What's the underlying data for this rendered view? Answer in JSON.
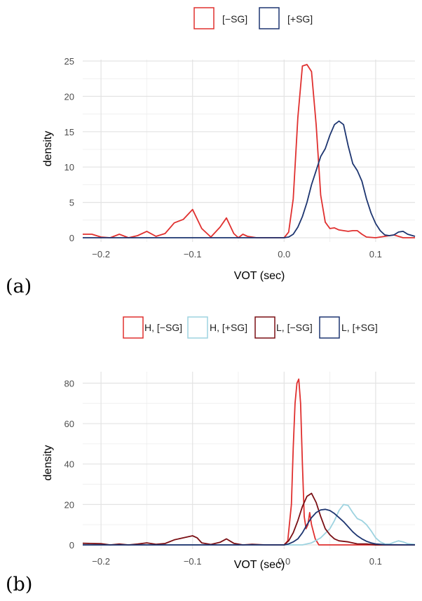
{
  "chart_data": [
    {
      "type": "line",
      "panel_label": "(a)",
      "xlabel": "VOT (sec)",
      "ylabel": "density",
      "xlim": [
        -0.22,
        0.143
      ],
      "ylim": [
        0,
        25
      ],
      "xticks": [
        -0.2,
        -0.1,
        0.0,
        0.1
      ],
      "xtick_labels": [
        "−0.2",
        "−0.1",
        "0.0",
        "0.1"
      ],
      "yticks": [
        0,
        5,
        10,
        15,
        20,
        25
      ],
      "ytick_labels": [
        "0",
        "5",
        "10",
        "15",
        "20",
        "25"
      ],
      "grid": true,
      "legend_position": "top",
      "series": [
        {
          "name": "[−SG]",
          "color": "#e0302f",
          "x": [
            -0.22,
            -0.21,
            -0.2,
            -0.19,
            -0.18,
            -0.17,
            -0.16,
            -0.15,
            -0.14,
            -0.13,
            -0.12,
            -0.11,
            -0.1,
            -0.09,
            -0.08,
            -0.07,
            -0.063,
            -0.055,
            -0.05,
            -0.045,
            -0.04,
            -0.03,
            -0.02,
            -0.01,
            -0.005,
            0.0,
            0.005,
            0.01,
            0.015,
            0.02,
            0.025,
            0.03,
            0.035,
            0.04,
            0.045,
            0.05,
            0.055,
            0.06,
            0.065,
            0.07,
            0.075,
            0.08,
            0.085,
            0.09,
            0.1,
            0.11,
            0.12,
            0.13,
            0.143
          ],
          "values": [
            0.5,
            0.5,
            0.1,
            0.0,
            0.5,
            0.0,
            0.3,
            0.9,
            0.2,
            0.6,
            2.1,
            2.6,
            4.0,
            1.3,
            0.1,
            1.5,
            2.8,
            0.6,
            0.0,
            0.5,
            0.2,
            0.0,
            0.0,
            0.0,
            0.0,
            0.0,
            0.8,
            5.5,
            17.0,
            24.3,
            24.5,
            23.5,
            16.0,
            6.0,
            2.2,
            1.3,
            1.4,
            1.1,
            1.0,
            0.9,
            1.0,
            1.0,
            0.5,
            0.1,
            0.0,
            0.2,
            0.4,
            0.0,
            0.0
          ]
        },
        {
          "name": "[+SG]",
          "color": "#1d3570",
          "x": [
            -0.22,
            -0.1,
            0.0,
            0.005,
            0.01,
            0.015,
            0.02,
            0.025,
            0.03,
            0.035,
            0.04,
            0.045,
            0.05,
            0.055,
            0.06,
            0.065,
            0.07,
            0.075,
            0.08,
            0.085,
            0.09,
            0.095,
            0.1,
            0.105,
            0.11,
            0.115,
            0.12,
            0.125,
            0.13,
            0.135,
            0.143
          ],
          "values": [
            0.0,
            0.0,
            0.0,
            0.1,
            0.5,
            1.5,
            3.0,
            5.0,
            7.5,
            9.5,
            11.5,
            12.6,
            14.5,
            16.0,
            16.5,
            16.0,
            13.0,
            10.5,
            9.5,
            8.0,
            5.5,
            3.5,
            2.0,
            1.0,
            0.4,
            0.3,
            0.4,
            0.8,
            0.9,
            0.5,
            0.2
          ]
        }
      ]
    },
    {
      "type": "line",
      "panel_label": "(b)",
      "xlabel": "VOT (sec)",
      "ylabel": "density",
      "xlim": [
        -0.22,
        0.143
      ],
      "ylim": [
        0,
        85
      ],
      "xticks": [
        -0.2,
        -0.1,
        0.0,
        0.1
      ],
      "xtick_labels": [
        "−0.2",
        "−0.1",
        "0.0",
        "0.1"
      ],
      "yticks": [
        0,
        20,
        40,
        60,
        80
      ],
      "ytick_labels": [
        "0",
        "20",
        "40",
        "60",
        "80"
      ],
      "grid": true,
      "legend_position": "top",
      "series": [
        {
          "name": "H, [−SG]",
          "color": "#e0302f",
          "x": [
            -0.22,
            0.0,
            0.004,
            0.008,
            0.01,
            0.012,
            0.014,
            0.016,
            0.018,
            0.02,
            0.022,
            0.024,
            0.026,
            0.028,
            0.03,
            0.034,
            0.038,
            0.143
          ],
          "values": [
            0.0,
            0.0,
            2.0,
            20.0,
            48.0,
            70.0,
            80.0,
            82.0,
            70.0,
            40.0,
            14.0,
            8.0,
            10.0,
            16.0,
            10.0,
            3.0,
            0.0,
            0.0
          ]
        },
        {
          "name": "H, [+SG]",
          "color": "#9dd3e0",
          "x": [
            -0.22,
            0.02,
            0.03,
            0.04,
            0.05,
            0.055,
            0.06,
            0.065,
            0.07,
            0.075,
            0.08,
            0.085,
            0.09,
            0.095,
            0.1,
            0.105,
            0.11,
            0.115,
            0.12,
            0.125,
            0.13,
            0.135,
            0.143
          ],
          "values": [
            0.0,
            0.0,
            1.0,
            3.5,
            8.0,
            12.0,
            17.0,
            20.0,
            19.5,
            16.0,
            13.0,
            12.0,
            10.0,
            7.0,
            3.5,
            1.5,
            0.5,
            0.4,
            1.3,
            2.0,
            1.5,
            0.6,
            0.2
          ]
        },
        {
          "name": "L, [−SG]",
          "color": "#7a0f14",
          "x": [
            -0.22,
            -0.2,
            -0.19,
            -0.18,
            -0.17,
            -0.16,
            -0.15,
            -0.14,
            -0.13,
            -0.12,
            -0.11,
            -0.1,
            -0.095,
            -0.09,
            -0.08,
            -0.07,
            -0.063,
            -0.055,
            -0.045,
            -0.035,
            -0.02,
            -0.01,
            0.0,
            0.005,
            0.01,
            0.015,
            0.02,
            0.025,
            0.03,
            0.035,
            0.04,
            0.045,
            0.05,
            0.055,
            0.06,
            0.07,
            0.08,
            0.09,
            0.1,
            0.11,
            0.143
          ],
          "values": [
            0.8,
            0.6,
            0.0,
            0.4,
            0.0,
            0.4,
            1.0,
            0.3,
            0.7,
            2.5,
            3.5,
            4.5,
            3.5,
            1.0,
            0.2,
            1.3,
            3.0,
            0.8,
            0.0,
            0.3,
            0.0,
            0.0,
            0.0,
            2.0,
            6.0,
            12.0,
            19.0,
            24.0,
            25.5,
            21.0,
            14.0,
            8.0,
            5.0,
            3.0,
            2.0,
            1.5,
            0.5,
            0.5,
            0.0,
            0.0,
            0.0
          ]
        },
        {
          "name": "L, [+SG]",
          "color": "#1d3570",
          "x": [
            -0.22,
            0.0,
            0.005,
            0.01,
            0.015,
            0.02,
            0.025,
            0.03,
            0.035,
            0.04,
            0.045,
            0.05,
            0.055,
            0.06,
            0.065,
            0.07,
            0.075,
            0.08,
            0.085,
            0.09,
            0.095,
            0.1,
            0.11,
            0.143
          ],
          "values": [
            0.0,
            0.0,
            0.5,
            1.5,
            3.0,
            6.0,
            10.0,
            13.5,
            16.0,
            17.3,
            17.6,
            17.0,
            15.5,
            13.5,
            11.5,
            9.0,
            6.5,
            4.5,
            3.0,
            1.8,
            1.0,
            0.5,
            0.1,
            0.0
          ]
        }
      ]
    }
  ],
  "legends": [
    {
      "items": [
        {
          "label": "[−SG]",
          "color": "#e0302f"
        },
        {
          "label": "[+SG]",
          "color": "#1d3570"
        }
      ]
    },
    {
      "items": [
        {
          "label": "H, [−SG]",
          "color": "#e0302f"
        },
        {
          "label": "H, [+SG]",
          "color": "#9dd3e0"
        },
        {
          "label": "L, [−SG]",
          "color": "#7a0f14"
        },
        {
          "label": "L, [+SG]",
          "color": "#1d3570"
        }
      ]
    }
  ]
}
